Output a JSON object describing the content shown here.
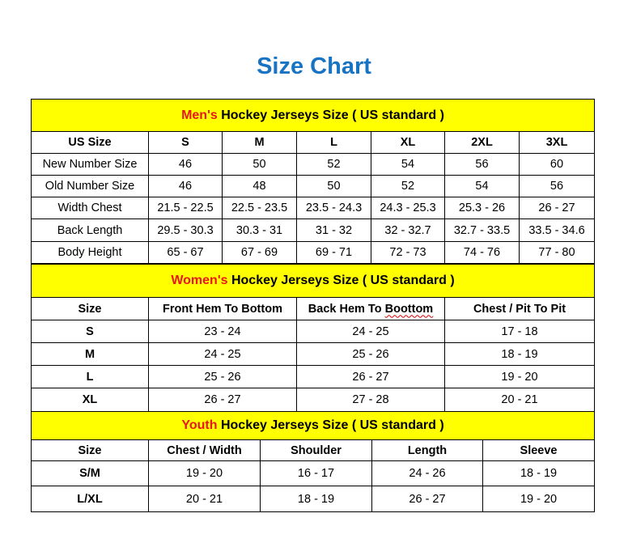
{
  "title": "Size Chart",
  "colors": {
    "title": "#1874C3",
    "band": "#FFFF00",
    "accent": "#E81818"
  },
  "men": {
    "accent": "Men's",
    "heading": " Hockey Jerseys Size ( US standard )",
    "columns": [
      "US Size",
      "S",
      "M",
      "L",
      "XL",
      "2XL",
      "3XL"
    ],
    "rows": [
      [
        "New Number Size",
        "46",
        "50",
        "52",
        "54",
        "56",
        "60"
      ],
      [
        "Old Number Size",
        "46",
        "48",
        "50",
        "52",
        "54",
        "56"
      ],
      [
        "Width Chest",
        "21.5 - 22.5",
        "22.5 - 23.5",
        "23.5 - 24.3",
        "24.3 - 25.3",
        "25.3 - 26",
        "26 - 27"
      ],
      [
        "Back Length",
        "29.5 - 30.3",
        "30.3 - 31",
        "31 - 32",
        "32 - 32.7",
        "32.7 - 33.5",
        "33.5 - 34.6"
      ],
      [
        "Body Height",
        "65 - 67",
        "67 - 69",
        "69 - 71",
        "72 - 73",
        "74 - 76",
        "77 - 80"
      ]
    ]
  },
  "women": {
    "accent": "Women's",
    "heading": " Hockey Jerseys Size ( US standard )",
    "columns": [
      "Size",
      "Front Hem To Bottom",
      "Back Hem To Boottom",
      "Chest / Pit To Pit"
    ],
    "rows": [
      [
        "S",
        "23 - 24",
        "24 - 25",
        "17 - 18"
      ],
      [
        "M",
        "24 - 25",
        "25 - 26",
        "18 - 19"
      ],
      [
        "L",
        "25 - 26",
        "26 - 27",
        "19 - 20"
      ],
      [
        "XL",
        "26 - 27",
        "27 - 28",
        "20 - 21"
      ]
    ]
  },
  "youth": {
    "accent": "Youth",
    "heading": " Hockey Jerseys Size ( US standard )",
    "columns": [
      "Size",
      "Chest / Width",
      "Shoulder",
      "Length",
      "Sleeve"
    ],
    "rows": [
      [
        "S/M",
        "19 - 20",
        "16 - 17",
        "24 - 26",
        "18 - 19"
      ],
      [
        "L/XL",
        "20 - 21",
        "18 - 19",
        "26 - 27",
        "19 - 20"
      ]
    ]
  }
}
